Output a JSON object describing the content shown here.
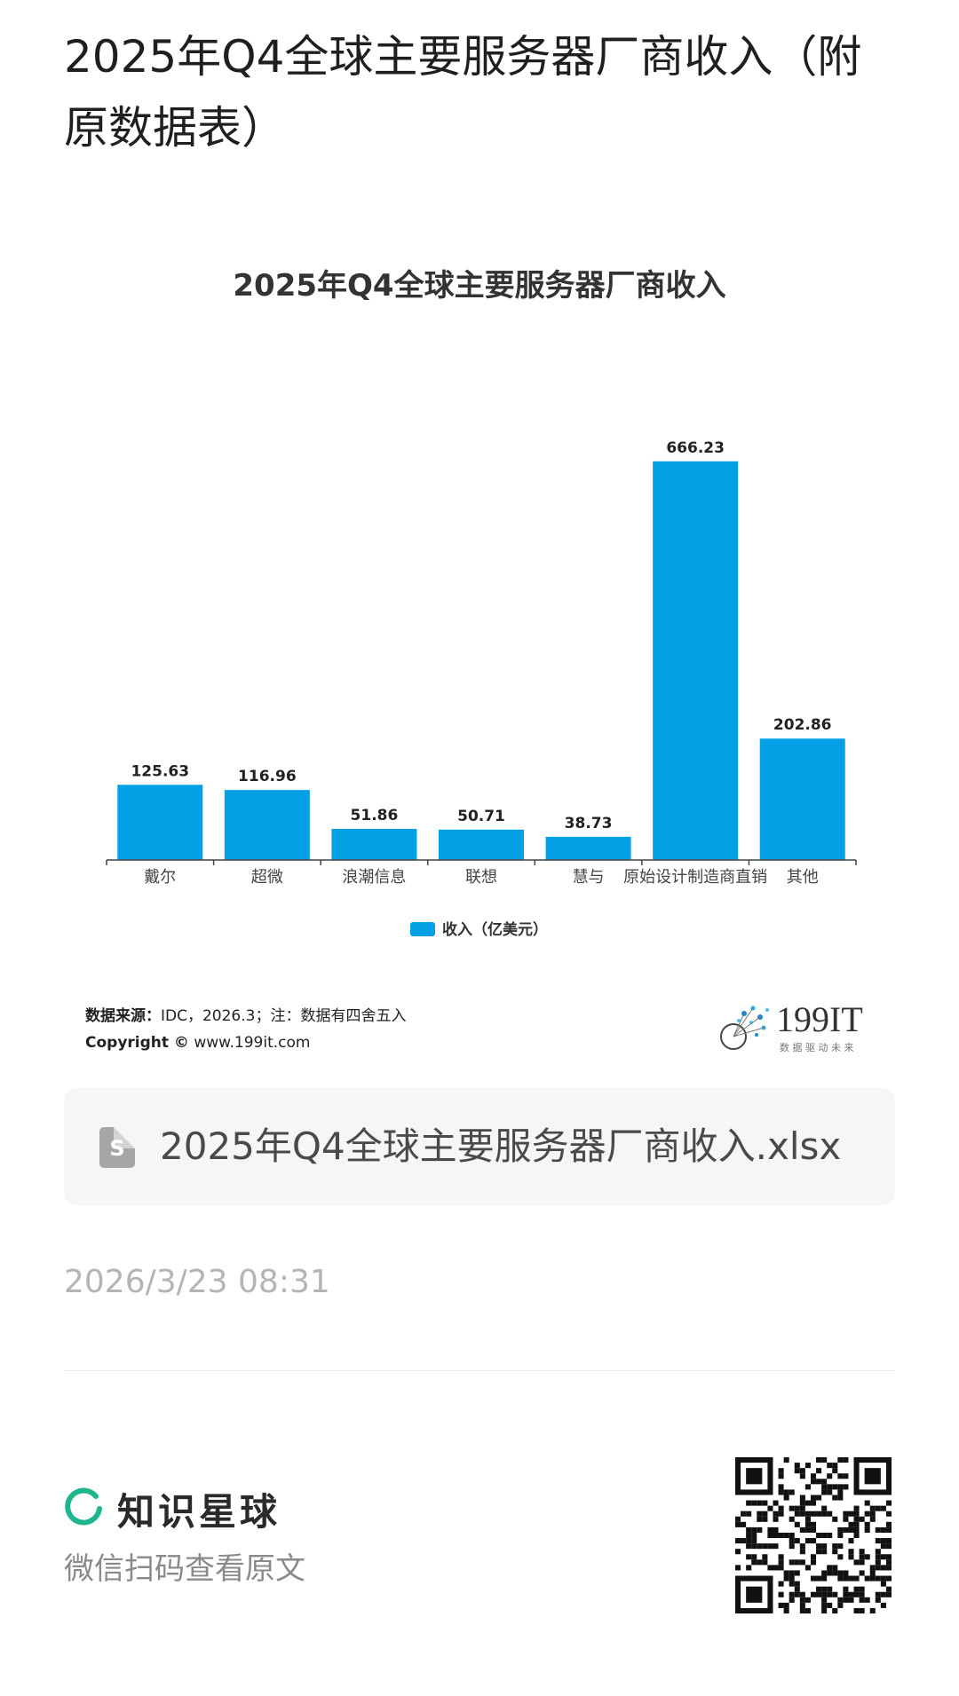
{
  "post": {
    "title": "2025年Q4全球主要服务器厂商收入（附原数据表）"
  },
  "chart_data": {
    "type": "bar",
    "title": "2025年Q4全球主要服务器厂商收入",
    "categories": [
      "戴尔",
      "超微",
      "浪潮信息",
      "联想",
      "慧与",
      "原始设计制造商直销",
      "其他"
    ],
    "series": [
      {
        "name": "收入（亿美元）",
        "values": [
          125.63,
          116.96,
          51.86,
          50.71,
          38.73,
          666.23,
          202.86
        ]
      }
    ],
    "data_labels": [
      "125.63",
      "116.96",
      "51.86",
      "50.71",
      "38.73",
      "666.23",
      "202.86"
    ],
    "ylim": [
      0,
      700
    ],
    "legend": "bottom",
    "grid": false,
    "bar_color": "#03a0e6"
  },
  "source": {
    "label": "数据来源：",
    "text": "IDC，2026.3；注：数据有四舍五入",
    "copyright_label": "Copyright ©",
    "copyright_site": "www.199it.com"
  },
  "brand": {
    "name": "199IT",
    "slogan": "数 据 驱 动 未 来"
  },
  "attachment": {
    "icon": "spreadsheet-file-icon",
    "icon_letter": "S",
    "file_name": "2025年Q4全球主要服务器厂商收入.xlsx"
  },
  "meta": {
    "timestamp": "2026/3/23 08:31"
  },
  "footer": {
    "app_name": "知识星球",
    "hint": "微信扫码查看原文",
    "accent": "#1fb58f"
  }
}
